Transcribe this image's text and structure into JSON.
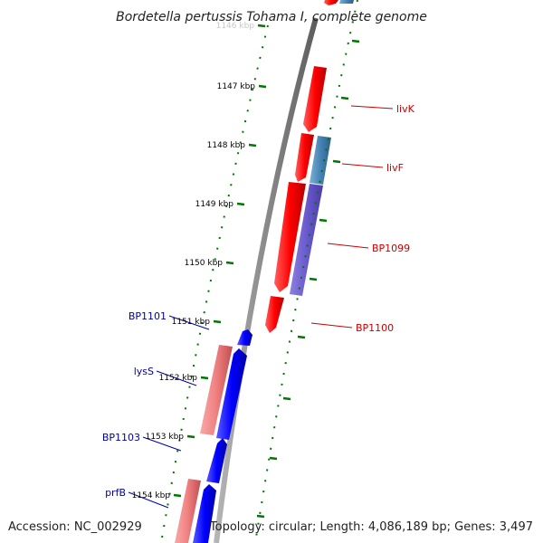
{
  "title": "Bordetella pertussis Tohama I, complete genome",
  "footer": {
    "accession": "Accession: NC_002929",
    "topology": "Topology: circular; Length: 4,086,189 bp; Genes: 3,497"
  },
  "colors": {
    "backbone": "#8a8a8a",
    "forward_gene": "#ff0000",
    "forward_gene_light": "#f08080",
    "reverse_gene": "#0000ff",
    "reverse_gene_light": "#4682b4",
    "overlap_gene": "#6a5acd",
    "tick": "#007700",
    "tick_label": "#000000",
    "forward_label": "#cc0000",
    "reverse_label": "#0000aa"
  },
  "ticks": [
    {
      "label": "1146 kbp"
    },
    {
      "label": "1147 kbp"
    },
    {
      "label": "1148 kbp"
    },
    {
      "label": "1149 kbp"
    },
    {
      "label": "1150 kbp"
    },
    {
      "label": "1151 kbp"
    },
    {
      "label": "1152 kbp"
    },
    {
      "label": "1153 kbp"
    },
    {
      "label": "1154 kbp"
    }
  ],
  "genes": [
    {
      "name": "livK",
      "strand": "forward"
    },
    {
      "name": "livF",
      "strand": "forward"
    },
    {
      "name": "BP1099",
      "strand": "forward"
    },
    {
      "name": "BP1100",
      "strand": "forward"
    },
    {
      "name": "BP1101",
      "strand": "reverse"
    },
    {
      "name": "lysS",
      "strand": "reverse"
    },
    {
      "name": "BP1103",
      "strand": "reverse"
    },
    {
      "name": "prfB",
      "strand": "reverse"
    }
  ]
}
